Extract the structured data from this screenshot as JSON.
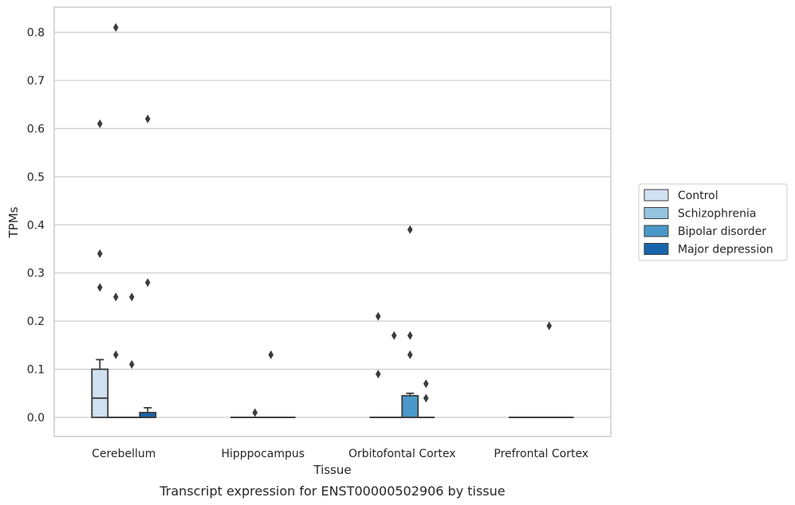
{
  "chart_data": {
    "type": "box",
    "caption": "Transcript expression for ENST00000502906 by tissue",
    "xlabel": "Tissue",
    "ylabel": "TPMs",
    "ylim": [
      -0.04,
      0.85
    ],
    "yticks": [
      0.0,
      0.1,
      0.2,
      0.3,
      0.4,
      0.5,
      0.6,
      0.7,
      0.8
    ],
    "ytick_labels": [
      "0.0",
      "0.1",
      "0.2",
      "0.3",
      "0.4",
      "0.5",
      "0.6",
      "0.7",
      "0.8"
    ],
    "grid": "horizontal",
    "legend_position": "right",
    "categories": [
      "Cerebellum",
      "Hipppocampus",
      "Orbitofontal Cortex",
      "Prefrontal Cortex"
    ],
    "series": [
      {
        "name": "Control",
        "color": "#d0e1f2",
        "boxes": [
          {
            "min": 0.0,
            "q1": 0.0,
            "median": 0.04,
            "q3": 0.1,
            "max": 0.12,
            "outliers": [
              0.61,
              0.34,
              0.27
            ]
          },
          {
            "min": 0.0,
            "q1": 0.0,
            "median": 0.0,
            "q3": 0.0,
            "max": 0.0,
            "outliers": []
          },
          {
            "min": 0.0,
            "q1": 0.0,
            "median": 0.0,
            "q3": 0.0,
            "max": 0.0,
            "outliers": [
              0.21,
              0.09
            ]
          },
          {
            "min": 0.0,
            "q1": 0.0,
            "median": 0.0,
            "q3": 0.0,
            "max": 0.0,
            "outliers": []
          }
        ]
      },
      {
        "name": "Schizophrenia",
        "color": "#94c4df",
        "boxes": [
          {
            "min": 0.0,
            "q1": 0.0,
            "median": 0.0,
            "q3": 0.0,
            "max": 0.0,
            "outliers": [
              0.81,
              0.25,
              0.13
            ]
          },
          {
            "min": 0.0,
            "q1": 0.0,
            "median": 0.0,
            "q3": 0.0,
            "max": 0.0,
            "outliers": [
              0.01
            ]
          },
          {
            "min": 0.0,
            "q1": 0.0,
            "median": 0.0,
            "q3": 0.0,
            "max": 0.0,
            "outliers": [
              0.17
            ]
          },
          {
            "min": 0.0,
            "q1": 0.0,
            "median": 0.0,
            "q3": 0.0,
            "max": 0.0,
            "outliers": []
          }
        ]
      },
      {
        "name": "Bipolar disorder",
        "color": "#4a98c9",
        "boxes": [
          {
            "min": 0.0,
            "q1": 0.0,
            "median": 0.0,
            "q3": 0.0,
            "max": 0.0,
            "outliers": [
              0.25,
              0.11
            ]
          },
          {
            "min": 0.0,
            "q1": 0.0,
            "median": 0.0,
            "q3": 0.0,
            "max": 0.0,
            "outliers": [
              0.13
            ]
          },
          {
            "min": 0.0,
            "q1": 0.0,
            "median": 0.0,
            "q3": 0.045,
            "max": 0.05,
            "outliers": [
              0.39,
              0.17,
              0.13
            ]
          },
          {
            "min": 0.0,
            "q1": 0.0,
            "median": 0.0,
            "q3": 0.0,
            "max": 0.0,
            "outliers": [
              0.19
            ]
          }
        ]
      },
      {
        "name": "Major depression",
        "color": "#1764ab",
        "boxes": [
          {
            "min": 0.0,
            "q1": 0.0,
            "median": 0.0,
            "q3": 0.01,
            "max": 0.02,
            "outliers": [
              0.62,
              0.28
            ]
          },
          {
            "min": 0.0,
            "q1": 0.0,
            "median": 0.0,
            "q3": 0.0,
            "max": 0.0,
            "outliers": []
          },
          {
            "min": 0.0,
            "q1": 0.0,
            "median": 0.0,
            "q3": 0.0,
            "max": 0.0,
            "outliers": [
              0.07,
              0.04
            ]
          },
          {
            "min": 0.0,
            "q1": 0.0,
            "median": 0.0,
            "q3": 0.0,
            "max": 0.0,
            "outliers": []
          }
        ]
      }
    ]
  }
}
